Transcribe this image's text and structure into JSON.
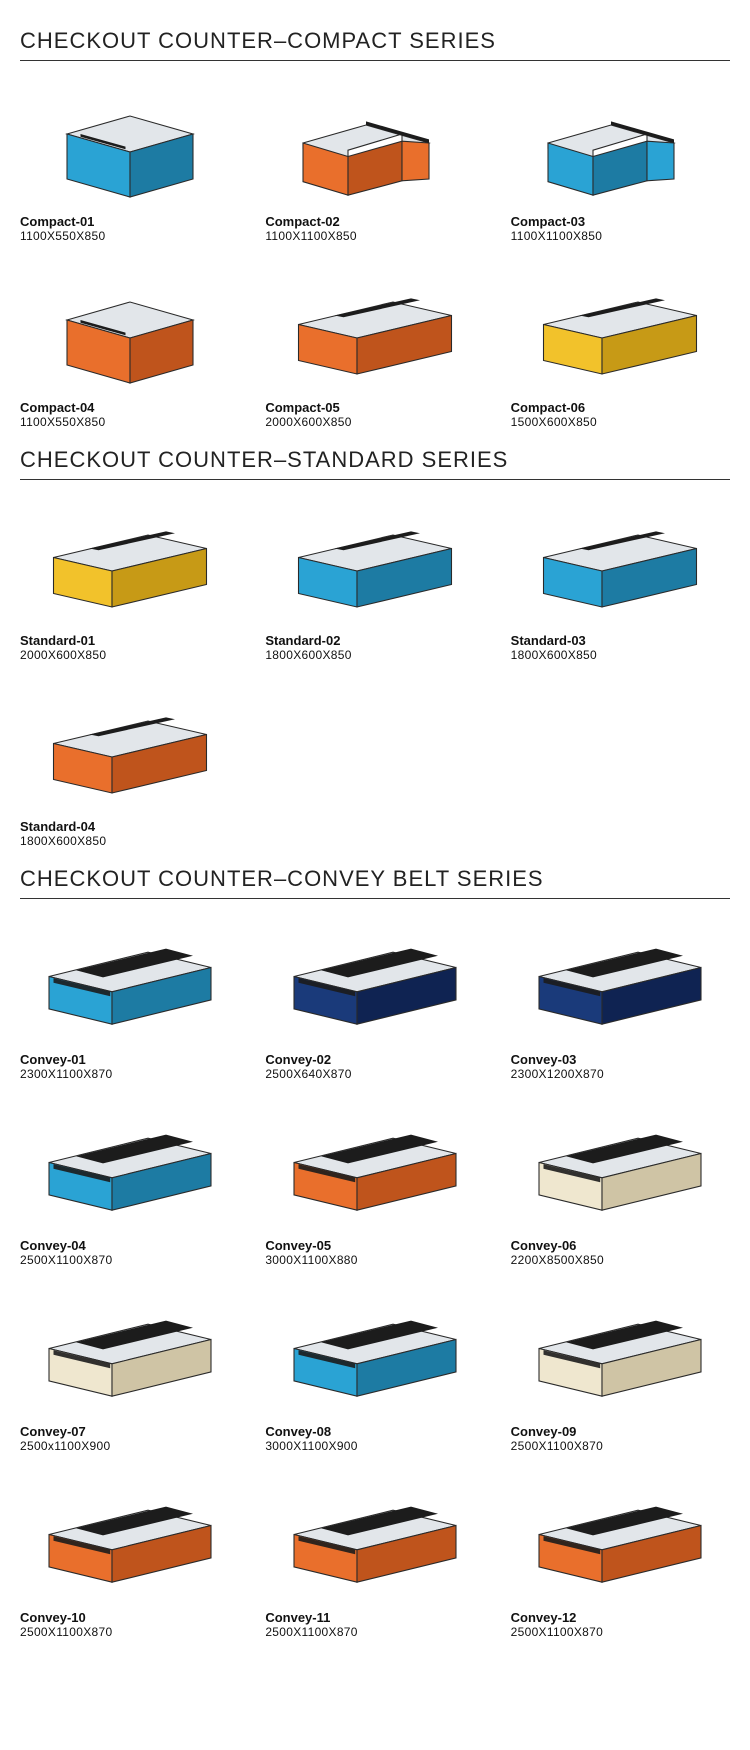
{
  "colors": {
    "blue": "#2aa3d4",
    "blue_dk": "#1d7ba3",
    "orange": "#e96f2c",
    "orange_dk": "#bf541c",
    "yellow": "#f2c22b",
    "yellow_dk": "#c79a16",
    "navy": "#1a3a7a",
    "navy_dk": "#0f2352",
    "cream": "#efe7cf",
    "cream_dk": "#cfc4a5",
    "top": "#e2e6ea",
    "top_dk": "#b9c0c7",
    "black": "#1c1c1c",
    "edge": "#2a2a2a"
  },
  "sections": [
    {
      "title": "CHECKOUT COUNTER–COMPACT SERIES",
      "items": [
        {
          "name": "Compact-01",
          "dim": "1100X550X850",
          "body": "blue",
          "shape": "box"
        },
        {
          "name": "Compact-02",
          "dim": "1100X1100X850",
          "body": "orange",
          "shape": "L"
        },
        {
          "name": "Compact-03",
          "dim": "1100X1100X850",
          "body": "blue",
          "shape": "L"
        },
        {
          "name": "Compact-04",
          "dim": "1100X550X850",
          "body": "orange",
          "shape": "box"
        },
        {
          "name": "Compact-05",
          "dim": "2000X600X850",
          "body": "orange",
          "shape": "long"
        },
        {
          "name": "Compact-06",
          "dim": "1500X600X850",
          "body": "yellow",
          "shape": "long"
        }
      ]
    },
    {
      "title": "CHECKOUT COUNTER–STANDARD SERIES",
      "items": [
        {
          "name": "Standard-01",
          "dim": "2000X600X850",
          "body": "yellow",
          "shape": "long"
        },
        {
          "name": "Standard-02",
          "dim": "1800X600X850",
          "body": "blue",
          "shape": "long"
        },
        {
          "name": "Standard-03",
          "dim": "1800X600X850",
          "body": "blue",
          "shape": "long"
        },
        {
          "name": "Standard-04",
          "dim": "1800X600X850",
          "body": "orange",
          "shape": "long"
        }
      ]
    },
    {
      "title": "CHECKOUT COUNTER–CONVEY BELT SERIES",
      "items": [
        {
          "name": "Convey-01",
          "dim": "2300X1100X870",
          "body": "blue",
          "shape": "belt"
        },
        {
          "name": "Convey-02",
          "dim": "2500X640X870",
          "body": "navy",
          "shape": "belt"
        },
        {
          "name": "Convey-03",
          "dim": "2300X1200X870",
          "body": "navy",
          "shape": "belt"
        },
        {
          "name": "Convey-04",
          "dim": "2500X1100X870",
          "body": "blue",
          "shape": "belt"
        },
        {
          "name": "Convey-05",
          "dim": "3000X1100X880",
          "body": "orange",
          "shape": "belt"
        },
        {
          "name": "Convey-06",
          "dim": "2200X8500X850",
          "body": "cream",
          "shape": "belt"
        },
        {
          "name": "Convey-07",
          "dim": "2500x1100X900",
          "body": "cream",
          "shape": "belt"
        },
        {
          "name": "Convey-08",
          "dim": "3000X1100X900",
          "body": "blue",
          "shape": "belt"
        },
        {
          "name": "Convey-09",
          "dim": "2500X1100X870",
          "body": "cream",
          "shape": "belt"
        },
        {
          "name": "Convey-10",
          "dim": "2500X1100X870",
          "body": "orange",
          "shape": "belt"
        },
        {
          "name": "Convey-11",
          "dim": "2500X1100X870",
          "body": "orange",
          "shape": "belt"
        },
        {
          "name": "Convey-12",
          "dim": "2500X1100X870",
          "body": "orange",
          "shape": "belt"
        }
      ]
    }
  ]
}
